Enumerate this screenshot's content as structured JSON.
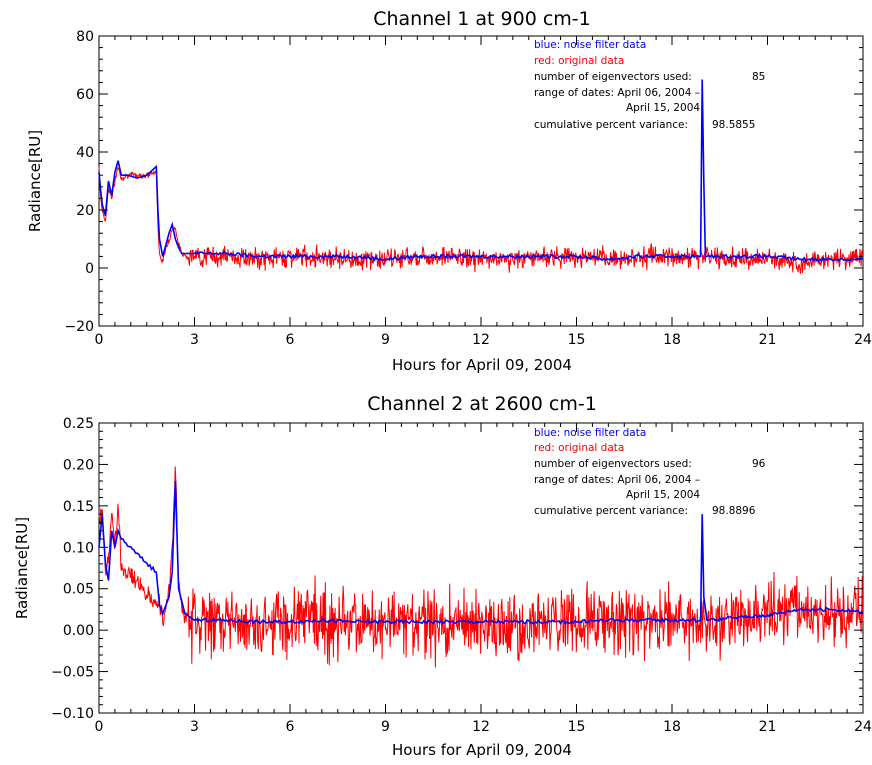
{
  "colors": {
    "filtered": "#0000ff",
    "original": "#ff0000",
    "axis": "#000000"
  },
  "chart_data": [
    {
      "type": "line",
      "title": "Channel 1 at 900 cm-1",
      "xlabel": "Hours for April 09, 2004",
      "ylabel": "Radiance[RU]",
      "xlim": [
        0,
        24
      ],
      "ylim": [
        -20,
        80
      ],
      "xticks": [
        0,
        3,
        6,
        9,
        12,
        15,
        18,
        21,
        24
      ],
      "xtick_labels": [
        "0",
        "3",
        "6",
        "9",
        "12",
        "15",
        "18",
        "21",
        "24"
      ],
      "yticks": [
        -20,
        0,
        20,
        40,
        60,
        80
      ],
      "ytick_labels": [
        "−20",
        "0",
        "20",
        "40",
        "60",
        "80"
      ],
      "annotations": {
        "legend_blue": "blue: noise filter data",
        "legend_red": "red: original data",
        "eig_label": "number of eigenvectors used:",
        "eig_value": "85",
        "range_label": "range of dates: April 06, 2004 –",
        "range_end": "April 15, 2004",
        "var_label": "cumulative percent variance:",
        "var_value": "98.5855"
      },
      "series": [
        {
          "name": "blue: noise filter data",
          "color": "#0000ff",
          "x": [
            0,
            0.05,
            0.1,
            0.2,
            0.3,
            0.4,
            0.5,
            0.6,
            0.7,
            0.9,
            1.2,
            1.5,
            1.8,
            1.85,
            1.9,
            2.0,
            2.1,
            2.2,
            2.3,
            2.4,
            2.5,
            2.6,
            2.8,
            3.0,
            4,
            5,
            6,
            7,
            8,
            9,
            10,
            11,
            12,
            13,
            14,
            15,
            16,
            17,
            18,
            18.9,
            18.95,
            19.0,
            19.05,
            19.1,
            20,
            21,
            22,
            23,
            24
          ],
          "y": [
            33,
            27,
            22,
            18,
            30,
            25,
            33,
            37,
            32,
            32,
            31,
            32,
            35,
            20,
            10,
            4,
            8,
            12,
            15,
            10,
            7,
            5,
            5,
            5,
            5,
            4,
            4,
            4,
            4,
            3,
            4,
            4,
            4,
            4,
            4,
            4,
            3,
            4,
            4,
            4,
            65,
            30,
            4,
            4,
            4,
            4,
            3,
            3,
            3
          ]
        },
        {
          "name": "red: original data",
          "color": "#ff0000",
          "x": [
            0,
            0.05,
            0.1,
            0.2,
            0.3,
            0.4,
            0.5,
            0.6,
            0.7,
            0.9,
            1.2,
            1.5,
            1.8,
            1.85,
            1.9,
            2.0,
            2.1,
            2.2,
            2.3,
            2.4,
            2.5,
            2.6,
            2.8,
            3.0,
            4,
            5,
            6,
            7,
            8,
            9,
            10,
            11,
            12,
            13,
            14,
            15,
            16,
            17,
            18,
            19,
            20,
            21,
            22,
            23,
            24
          ],
          "y": [
            35,
            25,
            20,
            16,
            28,
            24,
            30,
            35,
            31,
            32,
            32,
            32,
            33,
            15,
            5,
            2,
            7,
            10,
            13,
            14,
            8,
            5,
            4,
            4,
            4,
            3,
            4,
            4,
            3,
            3,
            4,
            4,
            3,
            3,
            4,
            4,
            3,
            4,
            4,
            4,
            3,
            3,
            2,
            3,
            4
          ],
          "noise": 3.5
        }
      ]
    },
    {
      "type": "line",
      "title": "Channel 2 at 2600 cm-1",
      "xlabel": "Hours for April 09, 2004",
      "ylabel": "Radiance[RU]",
      "xlim": [
        0,
        24
      ],
      "ylim": [
        -0.1,
        0.25
      ],
      "xticks": [
        0,
        3,
        6,
        9,
        12,
        15,
        18,
        21,
        24
      ],
      "xtick_labels": [
        "0",
        "3",
        "6",
        "9",
        "12",
        "15",
        "18",
        "21",
        "24"
      ],
      "yticks": [
        -0.1,
        -0.05,
        0,
        0.05,
        0.1,
        0.15,
        0.2,
        0.25
      ],
      "ytick_labels": [
        "−0.10",
        "−0.05",
        "0.00",
        "0.05",
        "0.10",
        "0.15",
        "0.20",
        "0.25"
      ],
      "annotations": {
        "legend_blue": "blue: noise filter data",
        "legend_red": "red: original data",
        "eig_label": "number of eigenvectors used:",
        "eig_value": "96",
        "range_label": "range of dates: April 06, 2004 –",
        "range_end": "April 15, 2004",
        "var_label": "cumulative percent variance:",
        "var_value": "98.8896"
      },
      "series": [
        {
          "name": "blue: noise filter data",
          "color": "#0000ff",
          "x": [
            0,
            0.1,
            0.2,
            0.3,
            0.4,
            0.5,
            0.6,
            0.7,
            1.8,
            1.9,
            2.0,
            2.2,
            2.3,
            2.4,
            2.5,
            2.7,
            3.0,
            4,
            5,
            6,
            7,
            8,
            9,
            10,
            11,
            12,
            13,
            14,
            15,
            16,
            17,
            18,
            18.9,
            18.95,
            19.0,
            19.1,
            20,
            21,
            22,
            23,
            24
          ],
          "y": [
            0.1,
            0.14,
            0.08,
            0.06,
            0.12,
            0.1,
            0.12,
            0.11,
            0.07,
            0.03,
            0.02,
            0.04,
            0.07,
            0.18,
            0.05,
            0.02,
            0.012,
            0.012,
            0.01,
            0.01,
            0.012,
            0.01,
            0.01,
            0.01,
            0.01,
            0.01,
            0.01,
            0.01,
            0.01,
            0.012,
            0.012,
            0.012,
            0.012,
            0.14,
            0.04,
            0.012,
            0.015,
            0.018,
            0.025,
            0.025,
            0.022
          ]
        },
        {
          "name": "red: original data",
          "color": "#ff0000",
          "x": [
            0,
            0.1,
            0.2,
            0.3,
            0.4,
            0.5,
            0.6,
            0.7,
            1.8,
            1.9,
            2.0,
            2.2,
            2.3,
            2.4,
            2.5,
            2.7,
            3.0,
            4,
            5,
            6,
            7,
            8,
            9,
            10,
            11,
            12,
            13,
            14,
            15,
            16,
            17,
            18,
            19,
            20,
            21,
            22,
            23,
            24
          ],
          "y": [
            0.13,
            0.15,
            0.07,
            0.09,
            0.14,
            0.1,
            0.15,
            0.08,
            0.03,
            0.03,
            0.01,
            0.05,
            0.1,
            0.2,
            0.05,
            0.01,
            0.01,
            0.01,
            0.0,
            0.01,
            0.01,
            0.01,
            0.005,
            0.01,
            0.005,
            0.01,
            0.0,
            0.01,
            0.01,
            0.01,
            0.01,
            0.01,
            0.01,
            0.01,
            0.02,
            0.02,
            0.02,
            0.02
          ],
          "noise": 0.04
        }
      ]
    }
  ]
}
